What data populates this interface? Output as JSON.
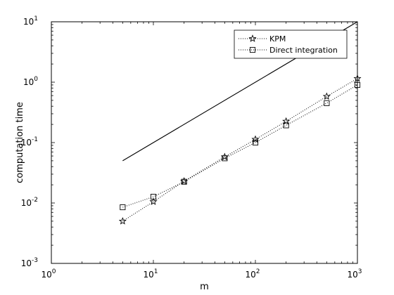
{
  "chart_data": {
    "type": "line",
    "xlabel": "m",
    "ylabel": "computation time",
    "x_scale": "log",
    "y_scale": "log",
    "xlim": [
      1,
      1000
    ],
    "ylim": [
      0.001,
      10
    ],
    "x_ticks": [
      {
        "value": 1,
        "base": "10",
        "exp": "0"
      },
      {
        "value": 10,
        "base": "10",
        "exp": "1"
      },
      {
        "value": 100,
        "base": "10",
        "exp": "2"
      },
      {
        "value": 1000,
        "base": "10",
        "exp": "3"
      }
    ],
    "y_ticks": [
      {
        "value": 0.001,
        "base": "10",
        "exp": "-3"
      },
      {
        "value": 0.01,
        "base": "10",
        "exp": "-2"
      },
      {
        "value": 0.1,
        "base": "10",
        "exp": "-1"
      },
      {
        "value": 1,
        "base": "10",
        "exp": "0"
      },
      {
        "value": 10,
        "base": "10",
        "exp": "1"
      }
    ],
    "grid": false,
    "legend_position": "top-right",
    "series": [
      {
        "name": "KPM",
        "marker": "star",
        "line_style": "dotted",
        "x": [
          5,
          10,
          20,
          50,
          100,
          200,
          500,
          1000
        ],
        "y": [
          0.005,
          0.0105,
          0.023,
          0.058,
          0.113,
          0.225,
          0.58,
          1.15
        ]
      },
      {
        "name": "Direct integration",
        "marker": "square",
        "line_style": "dotted",
        "x": [
          5,
          10,
          20,
          50,
          100,
          200,
          500,
          1000
        ],
        "y": [
          0.0085,
          0.0127,
          0.0225,
          0.055,
          0.1,
          0.193,
          0.45,
          0.9
        ]
      },
      {
        "name": "",
        "marker": "none",
        "line_style": "solid",
        "x": [
          5,
          1000
        ],
        "y": [
          0.05,
          10
        ]
      }
    ]
  }
}
